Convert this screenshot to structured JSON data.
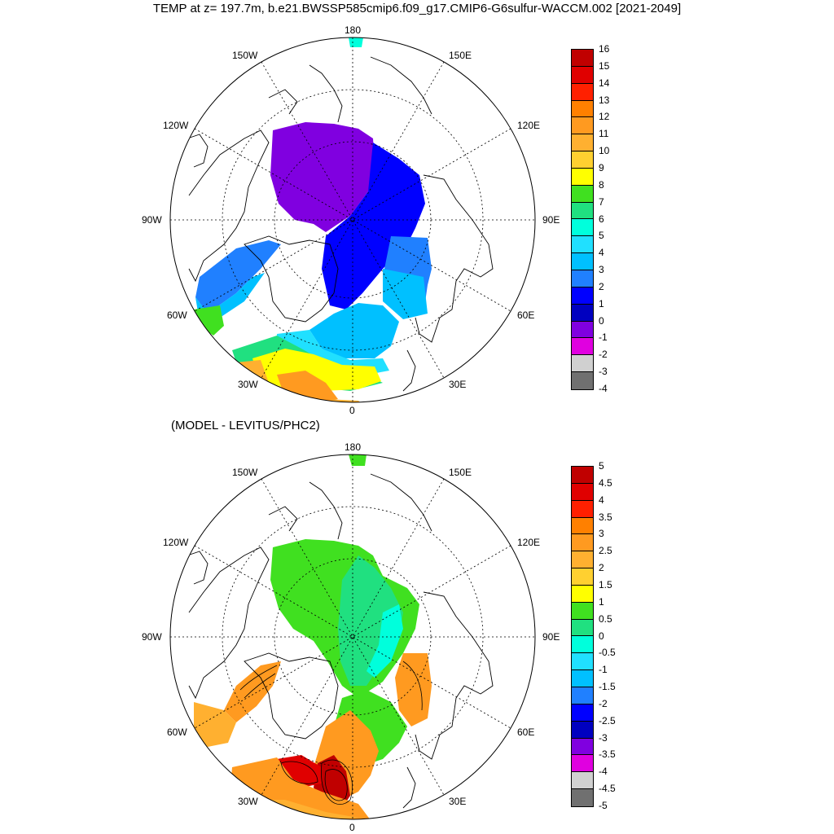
{
  "figure": {
    "title": "TEMP at z= 197.7m, b.e21.BWSSP585cmip6.f09_g17.CMIP6-G6sulfur-WACCM.002 [2021-2049]",
    "subtitle": "(MODEL - LEVITUS/PHC2)"
  },
  "map": {
    "projection": "north polar stereographic",
    "longitude_labels": [
      "180",
      "150E",
      "120E",
      "90E",
      "60E",
      "30E",
      "0",
      "30W",
      "60W",
      "90W",
      "120W",
      "150W"
    ]
  },
  "colorbars": {
    "top": {
      "labels": [
        "16",
        "15",
        "14",
        "13",
        "12",
        "11",
        "10",
        "9",
        "8",
        "7",
        "6",
        "5",
        "4",
        "3",
        "2",
        "1",
        "0",
        "-1",
        "-2",
        "-3",
        "-4"
      ],
      "colors": [
        "#c00000",
        "#e00000",
        "#ff2000",
        "#ff8000",
        "#ff9a20",
        "#ffb030",
        "#ffd030",
        "#ffff00",
        "#40e020",
        "#20e080",
        "#00ffdc",
        "#20e0ff",
        "#00c0ff",
        "#2080ff",
        "#0000ff",
        "#0000c0",
        "#8000e0",
        "#e000e0",
        "#d0d0d0",
        "#707070"
      ]
    },
    "bottom": {
      "labels": [
        "5",
        "4.5",
        "4",
        "3.5",
        "3",
        "2.5",
        "2",
        "1.5",
        "1",
        "0.5",
        "0",
        "-0.5",
        "-1",
        "-1.5",
        "-2",
        "-2.5",
        "-3",
        "-3.5",
        "-4",
        "-4.5",
        "-5"
      ],
      "colors": [
        "#c00000",
        "#e00000",
        "#ff2000",
        "#ff8000",
        "#ff9a20",
        "#ffb030",
        "#ffd030",
        "#ffff00",
        "#40e020",
        "#20e080",
        "#00ffdc",
        "#20e0ff",
        "#00c0ff",
        "#2080ff",
        "#0000ff",
        "#0000c0",
        "#8000e0",
        "#e000e0",
        "#d0d0d0",
        "#707070"
      ]
    }
  }
}
